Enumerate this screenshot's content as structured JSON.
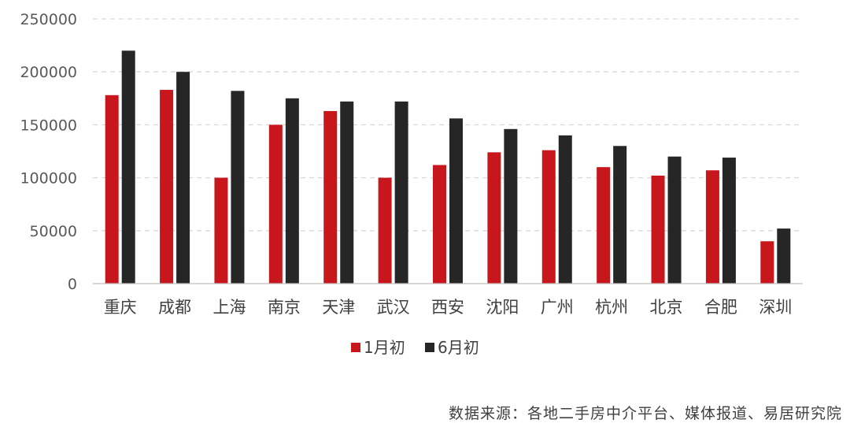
{
  "chart_data": {
    "type": "bar",
    "categories": [
      "重庆",
      "成都",
      "上海",
      "南京",
      "天津",
      "武汉",
      "西安",
      "沈阳",
      "广州",
      "杭州",
      "北京",
      "合肥",
      "深圳"
    ],
    "series": [
      {
        "name": "1月初",
        "color": "#C8161D",
        "values": [
          178000,
          183000,
          100000,
          150000,
          163000,
          100000,
          112000,
          124000,
          126000,
          110000,
          102000,
          107000,
          40000
        ]
      },
      {
        "name": "6月初",
        "color": "#262626",
        "values": [
          220000,
          200000,
          182000,
          175000,
          172000,
          172000,
          156000,
          146000,
          140000,
          130000,
          120000,
          119000,
          52000
        ]
      }
    ],
    "yticks": [
      "0",
      "50000",
      "100000",
      "150000",
      "200000",
      "250000"
    ],
    "ylim": [
      0,
      250000
    ],
    "grid": true,
    "legend": "bottom-center"
  },
  "source_note": "数据来源：各地二手房中介平台、媒体报道、易居研究院"
}
